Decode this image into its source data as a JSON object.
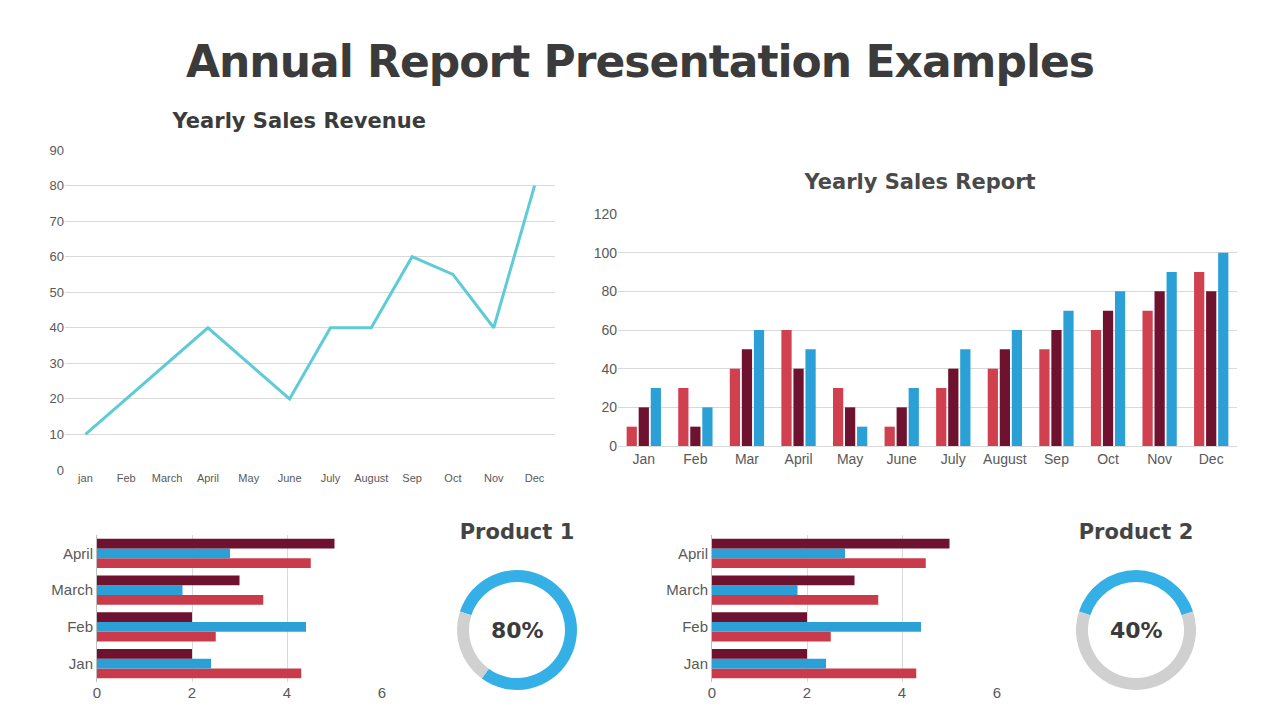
{
  "title": "Annual Report Presentation Examples",
  "chart_data": [
    {
      "type": "line",
      "title": "Yearly Sales Revenue",
      "categories": [
        "jan",
        "Feb",
        "March",
        "April",
        "May",
        "June",
        "July",
        "August",
        "Sep",
        "Oct",
        "Nov",
        "Dec"
      ],
      "values": [
        10,
        20,
        30,
        40,
        30,
        20,
        40,
        40,
        60,
        55,
        40,
        80
      ],
      "color": "#5ecbd6",
      "ylim": [
        0,
        90
      ],
      "yticks": [
        0,
        10,
        20,
        30,
        40,
        50,
        60,
        70,
        80,
        90
      ],
      "grid": true
    },
    {
      "type": "bar",
      "title": "Yearly Sales Report",
      "categories": [
        "Jan",
        "Feb",
        "Mar",
        "April",
        "May",
        "June",
        "July",
        "August",
        "Sep",
        "Oct",
        "Nov",
        "Dec"
      ],
      "series": [
        {
          "color": "#d0404f",
          "values": [
            10,
            30,
            40,
            60,
            30,
            10,
            30,
            40,
            50,
            60,
            70,
            90
          ]
        },
        {
          "color": "#6e1230",
          "values": [
            20,
            10,
            50,
            40,
            20,
            20,
            40,
            50,
            60,
            70,
            80,
            80
          ]
        },
        {
          "color": "#2aa0d6",
          "values": [
            30,
            20,
            60,
            50,
            10,
            30,
            50,
            60,
            70,
            80,
            90,
            100
          ]
        }
      ],
      "ylim": [
        0,
        120
      ],
      "yticks": [
        0,
        20,
        40,
        60,
        80,
        100,
        120
      ],
      "grid": true
    },
    {
      "type": "bar",
      "orientation": "horizontal",
      "categories": [
        "Jan",
        "Feb",
        "March",
        "April"
      ],
      "series": [
        {
          "color": "#c93a4a",
          "values": [
            4.3,
            2.5,
            3.5,
            4.5
          ]
        },
        {
          "color": "#2aa0d6",
          "values": [
            2.4,
            4.4,
            1.8,
            2.8
          ]
        },
        {
          "color": "#6e1230",
          "values": [
            2,
            2,
            3,
            5
          ]
        }
      ],
      "xlim": [
        0,
        6
      ],
      "xticks": [
        0,
        2,
        4,
        6
      ],
      "grid": true
    },
    {
      "type": "pie",
      "title": "Product 1",
      "values": [
        80,
        20
      ],
      "value_labels": [
        "80%",
        null
      ],
      "colors": [
        "#35b0e6",
        "#d0d0d0"
      ],
      "data_labels": true
    },
    {
      "type": "bar",
      "orientation": "horizontal",
      "categories": [
        "Jan",
        "Feb",
        "March",
        "April"
      ],
      "series": [
        {
          "color": "#c93a4a",
          "values": [
            4.3,
            2.5,
            3.5,
            4.5
          ]
        },
        {
          "color": "#2aa0d6",
          "values": [
            2.4,
            4.4,
            1.8,
            2.8
          ]
        },
        {
          "color": "#6e1230",
          "values": [
            2,
            2,
            3,
            5
          ]
        }
      ],
      "xlim": [
        0,
        6
      ],
      "xticks": [
        0,
        2,
        4,
        6
      ],
      "grid": true
    },
    {
      "type": "pie",
      "title": "Product 2",
      "values": [
        40,
        60
      ],
      "value_labels": [
        "40%",
        null
      ],
      "colors": [
        "#35b0e6",
        "#d0d0d0"
      ],
      "data_labels": true
    }
  ]
}
